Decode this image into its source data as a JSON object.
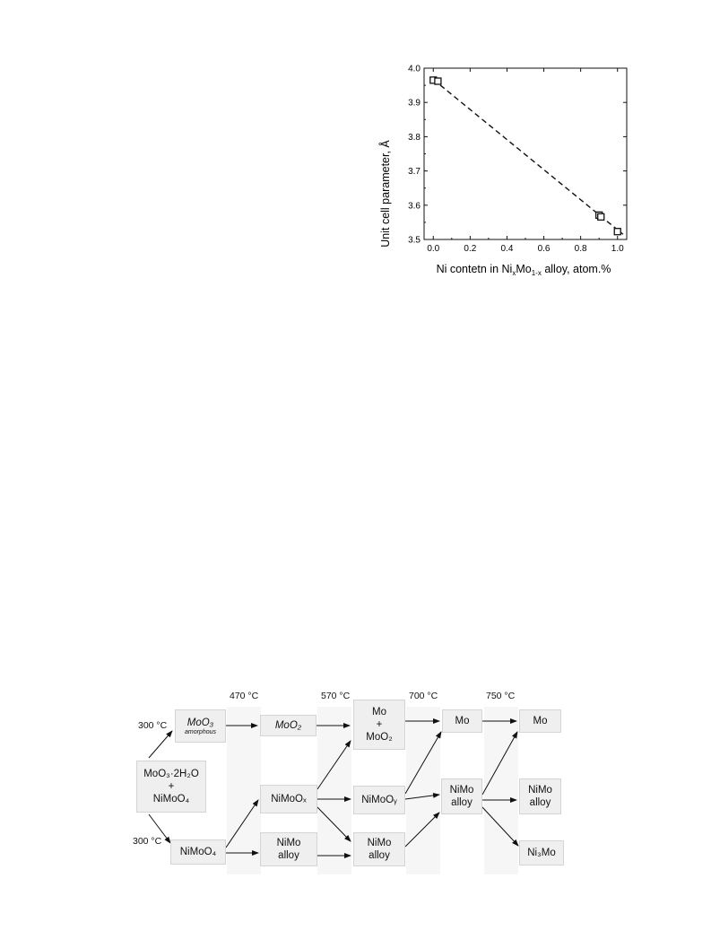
{
  "chart_data": {
    "type": "scatter",
    "xlabel_parts": [
      "Ni contetn in Ni",
      "x",
      "Mo",
      "1-x",
      " alloy, atom.%"
    ],
    "ylabel": "Unit cell parameter, Å",
    "xlim": [
      -0.05,
      1.05
    ],
    "ylim": [
      3.5,
      4.0
    ],
    "xticks": [
      0.0,
      0.2,
      0.4,
      0.6,
      0.8,
      1.0
    ],
    "xtick_labels": [
      "0.0",
      "0.2",
      "0.4",
      "0.6",
      "0.8",
      "1.0"
    ],
    "yticks": [
      3.5,
      3.6,
      3.7,
      3.8,
      3.9,
      4.0
    ],
    "ytick_labels": [
      "3.5",
      "3.6",
      "3.7",
      "3.8",
      "3.9",
      "4.0"
    ],
    "points": [
      {
        "x": 0.0,
        "y": 3.965
      },
      {
        "x": 0.025,
        "y": 3.962
      },
      {
        "x": 0.9,
        "y": 3.571
      },
      {
        "x": 0.91,
        "y": 3.566
      },
      {
        "x": 1.0,
        "y": 3.523
      }
    ],
    "fit_line": {
      "x": [
        0.0,
        1.03
      ],
      "y": [
        3.967,
        3.515
      ],
      "style": "dashed"
    },
    "grid": false,
    "marker": "open-square"
  },
  "scheme": {
    "temperatures": [
      "470 °C",
      "570 °C",
      "700 °C",
      "750 °C"
    ],
    "start_label_top": "300 °C",
    "start_label_bottom": "300 °C",
    "start": {
      "line1": "MoO₃·2H₂O",
      "line2": "+",
      "line3": "NiMoO₄"
    },
    "moo3": {
      "main": "MoO₃",
      "sub": "amorphous"
    },
    "nimoo4": "NiMoO₄",
    "moo2": "MoO₂",
    "nimoox": "NiMoOₓ",
    "nimo_alloy_1": {
      "l1": "NiMo",
      "l2": "alloy"
    },
    "mo_moo2": {
      "l1": "Mo",
      "l2": "+",
      "l3": "MoO₂"
    },
    "nimooy": "NiMoOᵧ",
    "nimo_alloy_2": {
      "l1": "NiMo",
      "l2": "alloy"
    },
    "mo_1": "Mo",
    "nimo_alloy_3": {
      "l1": "NiMo",
      "l2": "alloy"
    },
    "mo_2": "Mo",
    "nimo_alloy_4": {
      "l1": "NiMo",
      "l2": "alloy"
    },
    "ni3mo": "Ni₃Mo"
  }
}
